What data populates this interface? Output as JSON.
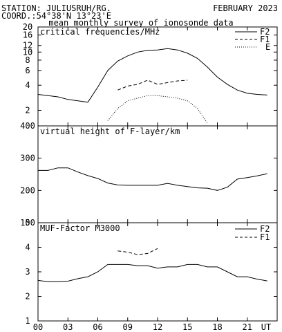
{
  "header": {
    "station": "STATION: JULIUSRUH/RG.",
    "month": "FEBRUARY 2023",
    "coord": "COORD.:54°38'N 13°23'E",
    "subtitle": "mean monthly survey of ionosonde data"
  },
  "x_axis": {
    "ticks": [
      0,
      3,
      6,
      9,
      12,
      15,
      18,
      21
    ],
    "tick_labels": [
      "00",
      "03",
      "06",
      "09",
      "12",
      "15",
      "18",
      "21"
    ],
    "end_label": "UT",
    "range": [
      0,
      24
    ]
  },
  "chart_data": [
    {
      "type": "line",
      "title": "critical frequencies/MHz",
      "y_scale": "log",
      "ylim": [
        1.3,
        20
      ],
      "y_ticks": [
        2,
        4,
        6,
        8,
        10,
        12,
        16,
        20
      ],
      "y_tick_labels": [
        "2",
        "4",
        "6",
        "8",
        "10",
        "12",
        "16",
        "20"
      ],
      "legend_position": "top-right",
      "series": [
        {
          "name": "F2",
          "style": "solid",
          "x": [
            0,
            1,
            2,
            3,
            4,
            5,
            6,
            7,
            8,
            9,
            10,
            11,
            12,
            13,
            14,
            15,
            16,
            17,
            18,
            19,
            20,
            21,
            22,
            23
          ],
          "y": [
            3.1,
            3.0,
            2.9,
            2.7,
            2.6,
            2.5,
            3.8,
            6.0,
            7.8,
            9.0,
            10.0,
            10.5,
            10.6,
            11.0,
            10.6,
            9.7,
            8.4,
            6.6,
            5.0,
            4.1,
            3.5,
            3.2,
            3.1,
            3.05
          ]
        },
        {
          "name": "F1",
          "style": "dashed",
          "x": [
            8,
            9,
            10,
            11,
            12,
            13,
            14,
            15
          ],
          "y": [
            3.5,
            3.9,
            4.1,
            4.6,
            4.1,
            4.3,
            4.5,
            4.6
          ]
        },
        {
          "name": "E",
          "style": "dotted",
          "x": [
            7,
            8,
            9,
            10,
            11,
            12,
            13,
            14,
            15,
            16,
            17
          ],
          "y": [
            1.5,
            2.1,
            2.6,
            2.8,
            3.0,
            3.0,
            2.9,
            2.8,
            2.6,
            2.1,
            1.4
          ]
        }
      ]
    },
    {
      "type": "line",
      "title": "virtual height of F-layer/km",
      "ylim": [
        100,
        400
      ],
      "y_ticks": [
        100,
        200,
        300,
        400
      ],
      "y_tick_labels": [
        "100",
        "200",
        "300",
        "400"
      ],
      "series": [
        {
          "name": "",
          "style": "solid",
          "x": [
            0,
            1,
            2,
            3,
            4,
            5,
            6,
            7,
            8,
            9,
            10,
            11,
            12,
            13,
            14,
            15,
            16,
            17,
            18,
            19,
            20,
            21,
            22,
            23
          ],
          "y": [
            262,
            262,
            270,
            270,
            257,
            246,
            237,
            223,
            217,
            216,
            216,
            216,
            216,
            222,
            216,
            212,
            208,
            207,
            200,
            210,
            235,
            240,
            245,
            252
          ]
        }
      ]
    },
    {
      "type": "line",
      "title": "MUF-Factor M3000",
      "ylim": [
        1,
        5
      ],
      "y_ticks": [
        1,
        2,
        3,
        4,
        5
      ],
      "y_tick_labels": [
        "1",
        "2",
        "3",
        "4",
        "5"
      ],
      "legend_position": "top-right",
      "series": [
        {
          "name": "F2",
          "style": "solid",
          "x": [
            0,
            1,
            2,
            3,
            4,
            5,
            6,
            7,
            8,
            9,
            10,
            11,
            12,
            13,
            14,
            15,
            16,
            17,
            18,
            19,
            20,
            21,
            22,
            23
          ],
          "y": [
            2.65,
            2.6,
            2.6,
            2.62,
            2.72,
            2.8,
            3.0,
            3.3,
            3.3,
            3.3,
            3.25,
            3.25,
            3.15,
            3.2,
            3.2,
            3.3,
            3.3,
            3.2,
            3.2,
            3.0,
            2.8,
            2.8,
            2.7,
            2.63
          ]
        },
        {
          "name": "F1",
          "style": "dashed",
          "x": [
            8,
            9,
            10,
            11,
            12
          ],
          "y": [
            3.85,
            3.8,
            3.7,
            3.75,
            3.95
          ]
        }
      ]
    }
  ]
}
